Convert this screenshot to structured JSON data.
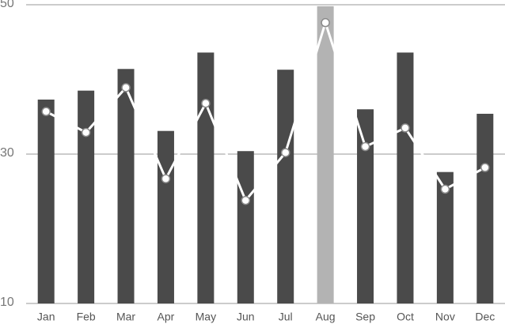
{
  "chart_data": {
    "type": "combo",
    "categories": [
      "Jan",
      "Feb",
      "Mar",
      "Apr",
      "May",
      "Jun",
      "Jul",
      "Aug",
      "Sep",
      "Oct",
      "Nov",
      "Dec"
    ],
    "series": [
      {
        "type": "bar",
        "color": "#4a4a4a",
        "highlight_color": "#b3b3b3",
        "highlight_index": 7,
        "values": [
          37.3,
          38.5,
          41.4,
          33.1,
          43.6,
          30.4,
          41.3,
          49.8,
          36.0,
          43.6,
          27.6,
          35.4
        ]
      },
      {
        "type": "line",
        "color": "#ffffff",
        "marker_stroke": "#8a8a8a",
        "values": [
          35.7,
          32.9,
          38.9,
          26.7,
          36.8,
          23.8,
          30.2,
          47.6,
          31.0,
          33.5,
          25.3,
          28.2
        ]
      }
    ],
    "ylim": [
      10,
      50
    ],
    "yticks": [
      10,
      30,
      50
    ],
    "grid": true
  }
}
